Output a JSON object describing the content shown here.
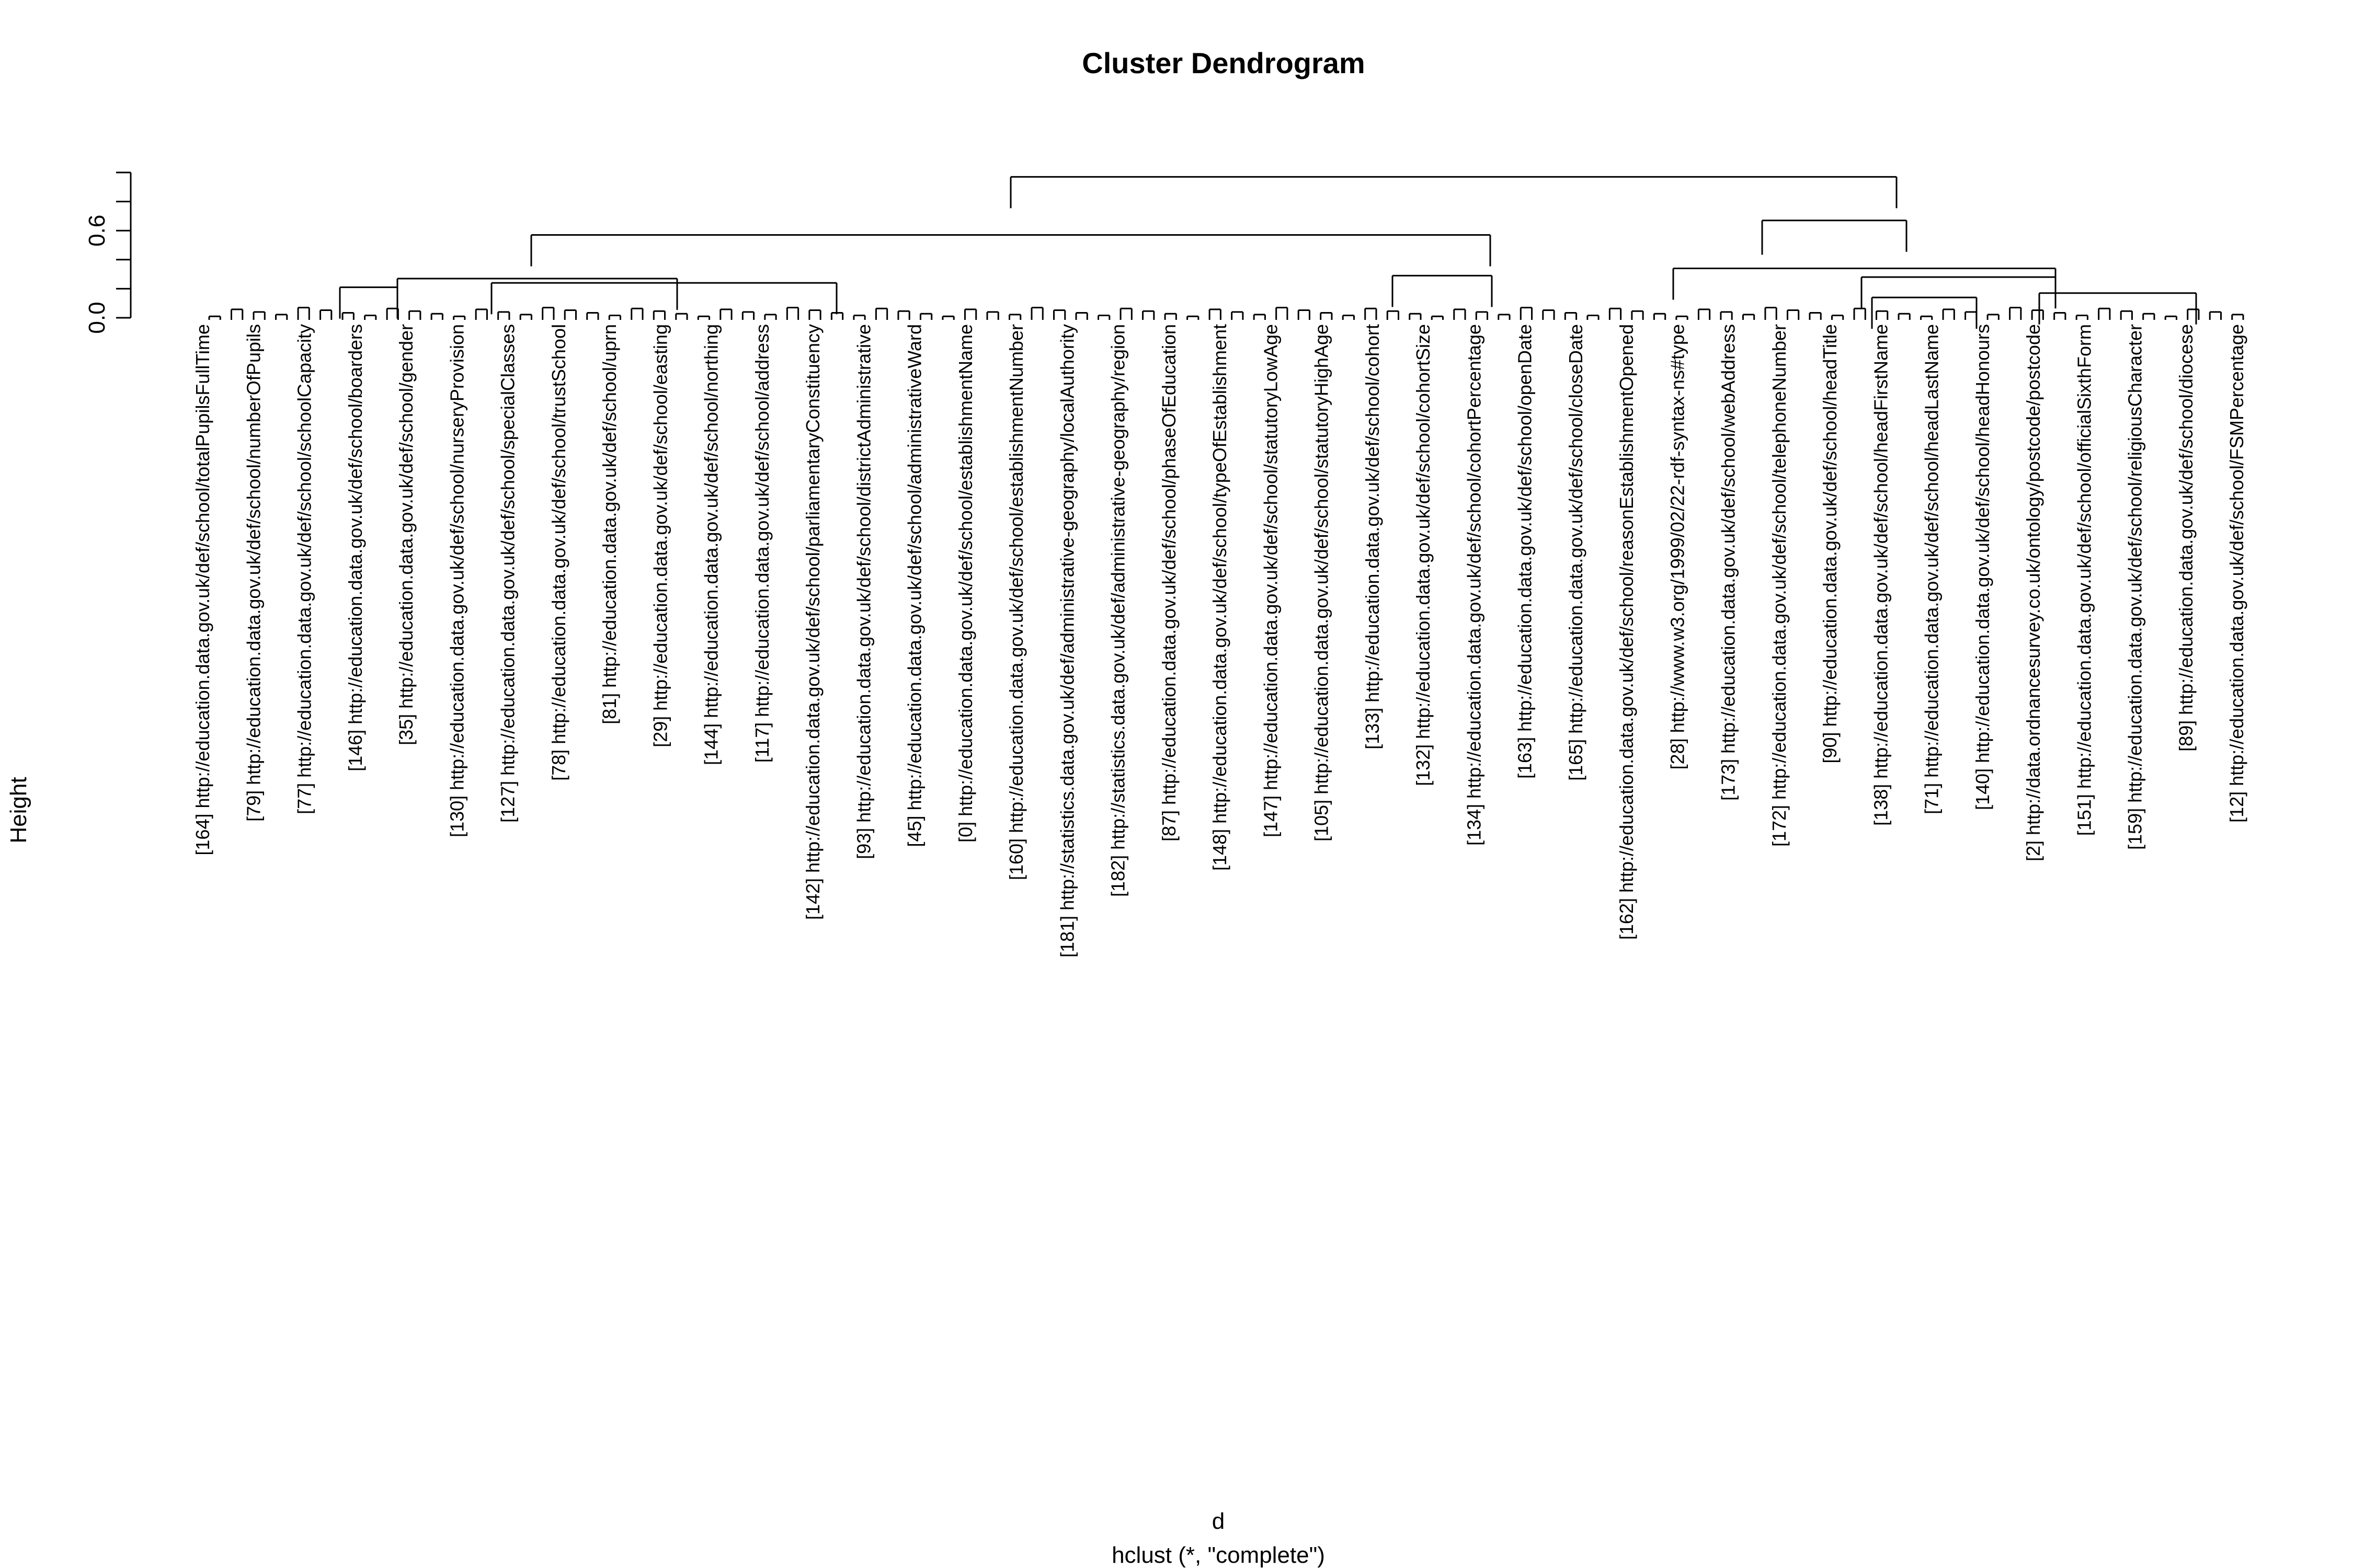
{
  "chart_data": {
    "type": "dendrogram",
    "title": "Cluster Dendrogram",
    "ylabel": "Height",
    "xlabel": "d",
    "sublabel": "hclust (*, \"complete\")",
    "ylim": [
      0,
      1.0
    ],
    "yticks": [
      0.0,
      0.2,
      0.4,
      0.6,
      0.8,
      1.0
    ],
    "ytick_labels": [
      "0.0",
      "",
      "",
      "0.6",
      "",
      ""
    ],
    "merges": [
      {
        "x1": 1933,
        "x2": 3627,
        "height": 0.97
      },
      {
        "x1": 1016,
        "x2": 2850,
        "height": 0.57
      },
      {
        "x1": 3370,
        "x2": 3646,
        "height": 0.67
      },
      {
        "x1": 3370,
        "x2": 3370,
        "height": 0.65
      },
      {
        "x1": 3200,
        "x2": 3931,
        "height": 0.34
      },
      {
        "x1": 3560,
        "x2": 3931,
        "height": 0.28
      },
      {
        "x1": 2663,
        "x2": 2853,
        "height": 0.29
      },
      {
        "x1": 760,
        "x2": 1295,
        "height": 0.27
      },
      {
        "x1": 940,
        "x2": 1600,
        "height": 0.24
      },
      {
        "x1": 650,
        "x2": 760,
        "height": 0.21
      },
      {
        "x1": 3580,
        "x2": 3780,
        "height": 0.14
      },
      {
        "x1": 3900,
        "x2": 4200,
        "height": 0.17
      }
    ],
    "leaf_labels": [
      "[164] http://education.data.gov.uk/def/school/totalPupilsFullTime",
      "[79] http://education.data.gov.uk/def/school/numberOfPupils",
      "[77] http://education.data.gov.uk/def/school/schoolCapacity",
      "[146] http://education.data.gov.uk/def/school/boarders",
      "[35] http://education.data.gov.uk/def/school/gender",
      "[130] http://education.data.gov.uk/def/school/nurseryProvision",
      "[127] http://education.data.gov.uk/def/school/specialClasses",
      "[78] http://education.data.gov.uk/def/school/trustSchool",
      "[81] http://education.data.gov.uk/def/school/uprn",
      "[29] http://education.data.gov.uk/def/school/easting",
      "[144] http://education.data.gov.uk/def/school/northing",
      "[117] http://education.data.gov.uk/def/school/address",
      "[142] http://education.data.gov.uk/def/school/parliamentaryConstituency",
      "[93] http://education.data.gov.uk/def/school/districtAdministrative",
      "[45] http://education.data.gov.uk/def/school/administrativeWard",
      "[0] http://education.data.gov.uk/def/school/establishmentName",
      "[160] http://education.data.gov.uk/def/school/establishmentNumber",
      "[181] http://statistics.data.gov.uk/def/administrative-geography/localAuthority",
      "[182] http://statistics.data.gov.uk/def/administrative-geography/region",
      "[87] http://education.data.gov.uk/def/school/phaseOfEducation",
      "[148] http://education.data.gov.uk/def/school/typeOfEstablishment",
      "[147] http://education.data.gov.uk/def/school/statutoryLowAge",
      "[105] http://education.data.gov.uk/def/school/statutoryHighAge",
      "[133] http://education.data.gov.uk/def/school/cohort",
      "[132] http://education.data.gov.uk/def/school/cohortSize",
      "[134] http://education.data.gov.uk/def/school/cohortPercentage",
      "[163] http://education.data.gov.uk/def/school/openDate",
      "[165] http://education.data.gov.uk/def/school/closeDate",
      "[162] http://education.data.gov.uk/def/school/reasonEstablishmentOpened",
      "[28] http://www.w3.org/1999/02/22-rdf-syntax-ns#type",
      "[173] http://education.data.gov.uk/def/school/webAddress",
      "[172] http://education.data.gov.uk/def/school/telephoneNumber",
      "[90] http://education.data.gov.uk/def/school/headTitle",
      "[138] http://education.data.gov.uk/def/school/headFirstName",
      "[71] http://education.data.gov.uk/def/school/headLastName",
      "[140] http://education.data.gov.uk/def/school/headHonours",
      "[2] http://data.ordnancesurvey.co.uk/ontology/postcode/postcode",
      "[151] http://education.data.gov.uk/def/school/officialSixthForm",
      "[159] http://education.data.gov.uk/def/school/religiousCharacter",
      "[89] http://education.data.gov.uk/def/school/diocese",
      "[12] http://education.data.gov.uk/def/school/FSMPercentage"
    ]
  }
}
